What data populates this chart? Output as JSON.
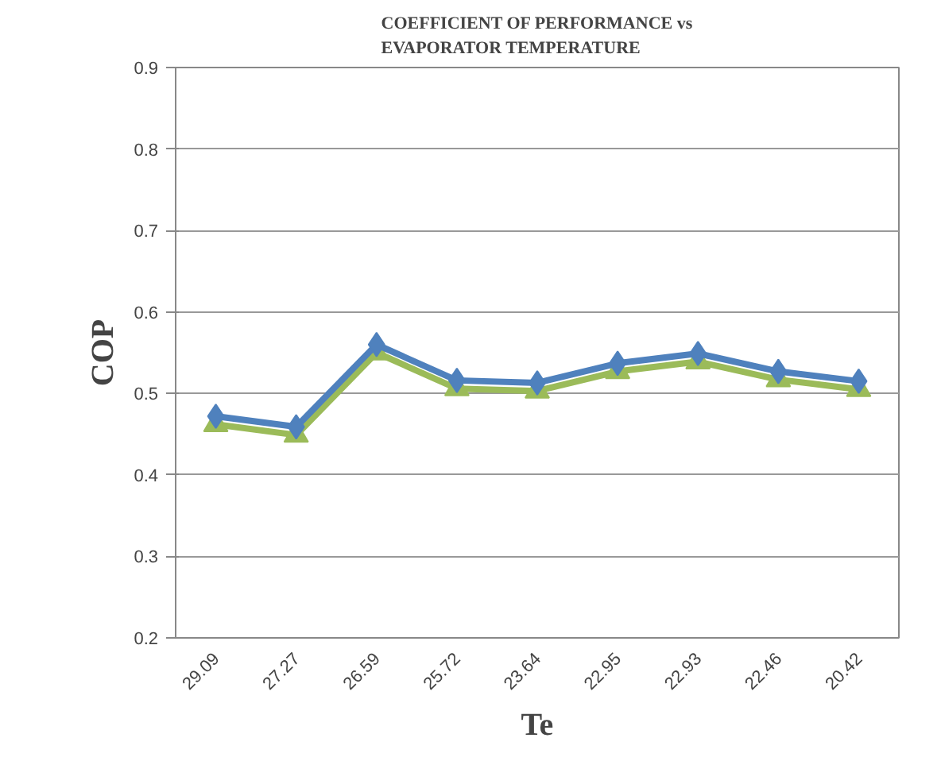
{
  "chart_data": {
    "type": "line",
    "title": "COEFFICIENT OF PERFORMANCE vs\nEVAPORATOR TEMPERATURE",
    "xlabel": "Te",
    "ylabel": "COP",
    "categories": [
      "29.09",
      "27.27",
      "26.59",
      "25.72",
      "23.64",
      "22.95",
      "22.93",
      "22.46",
      "20.42"
    ],
    "series": [
      {
        "color": "#9bbb59",
        "marker": "triangle",
        "values": [
          0.462,
          0.449,
          0.55,
          0.506,
          0.503,
          0.527,
          0.539,
          0.517,
          0.505
        ]
      },
      {
        "color": "#4f81bd",
        "marker": "diamond",
        "values": [
          0.472,
          0.459,
          0.56,
          0.516,
          0.513,
          0.537,
          0.549,
          0.527,
          0.515
        ]
      }
    ],
    "ylim": [
      0.2,
      0.9
    ],
    "yticks": [
      0.2,
      0.3,
      0.4,
      0.5,
      0.6,
      0.7,
      0.8,
      0.9
    ],
    "grid": "y",
    "line_style": "solid"
  }
}
